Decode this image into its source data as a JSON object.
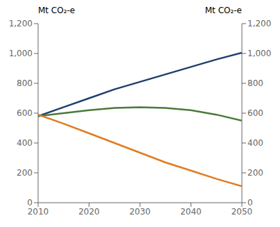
{
  "chart_data": {
    "type": "line",
    "y_label": "Mt CO₂-e",
    "y2_label": "Mt CO₂-e",
    "x": [
      2010,
      2015,
      2020,
      2025,
      2030,
      2035,
      2040,
      2045,
      2050
    ],
    "series": [
      {
        "color": "#1f3f6e",
        "values": [
          580,
          640,
          700,
          760,
          810,
          860,
          910,
          960,
          1005
        ]
      },
      {
        "color": "#4a7a3a",
        "values": [
          580,
          600,
          620,
          635,
          640,
          635,
          620,
          590,
          550
        ]
      },
      {
        "color": "#e07b20",
        "values": [
          590,
          530,
          465,
          400,
          335,
          270,
          215,
          160,
          110
        ]
      }
    ],
    "xlim": [
      2010,
      2050
    ],
    "xticks": [
      2010,
      2020,
      2030,
      2040,
      2050
    ],
    "ylim": [
      0,
      1200
    ],
    "yticks": [
      0,
      200,
      400,
      600,
      800,
      {
        "value": 1000,
        "label": "1,000"
      },
      {
        "value": 1200,
        "label": "1,200"
      }
    ],
    "y2lim": [
      0,
      1200
    ],
    "y2ticks": [
      0,
      200,
      400,
      600,
      800,
      {
        "value": 1000,
        "label": "1,000"
      },
      {
        "value": 1200,
        "label": "1,200"
      }
    ],
    "grid": false
  }
}
